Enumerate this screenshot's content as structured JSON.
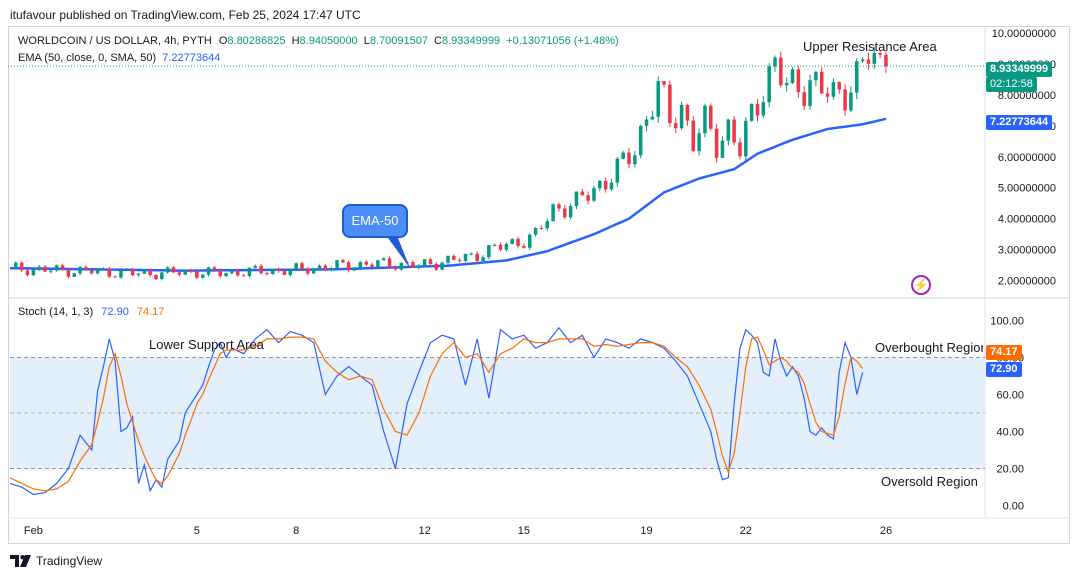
{
  "header": {
    "published_by": "itufavour published on TradingView.com, Feb 25, 2024 17:47 UTC"
  },
  "legend": {
    "symbol": "WORLDCOIN / US DOLLAR, 4h, PYTH",
    "open_label": "O",
    "open": "8.80286825",
    "high_label": "H",
    "high": "8.94050000",
    "low_label": "L",
    "low": "8.70091507",
    "close_label": "C",
    "close": "8.93349999",
    "change": "+0.13071056 (+1.48%)",
    "ema_label": "EMA (50, close, 0, SMA, 50)",
    "ema_value": "7.22773644",
    "stoch_label": "Stoch (14, 1, 3)",
    "stoch_k_value": "72.90",
    "stoch_d_value": "74.17"
  },
  "price_tags": {
    "last_price": "8.93349999",
    "countdown": "02:12:58",
    "ema": "7.22773644",
    "stoch_d": "74.17",
    "stoch_k": "72.90"
  },
  "annotations": {
    "upper_resistance": "Upper Resistance Area",
    "lower_support": "Lower Support Area",
    "overbought": "Overbought Region",
    "oversold": "Oversold Region",
    "ema_callout": "EMA-50"
  },
  "footer": {
    "brand": "TradingView"
  },
  "colors": {
    "up": "#089981",
    "down": "#f23645",
    "ema": "#2962ff",
    "stoch_k": "#2962ff",
    "stoch_d": "#ff6d00",
    "band": "#e3f0fb",
    "last_price_tag": "#089981",
    "ema_tag": "#2962ff"
  },
  "chart_data": [
    {
      "type": "candlestick",
      "title": "WORLDCOIN / US DOLLAR, 4h, PYTH",
      "y_tick_labels": [
        "10.00000000",
        "9.00000000",
        "8.00000000",
        "7.00000000",
        "6.00000000",
        "5.00000000",
        "4.00000000",
        "3.00000000",
        "2.00000000"
      ],
      "y_ticks": [
        10,
        9,
        8,
        7,
        6,
        5,
        4,
        3,
        2
      ],
      "ylim": [
        1.5,
        10.1
      ],
      "x_tick_labels": [
        "Feb",
        "5",
        "8",
        "12",
        "15",
        "19",
        "22",
        "26"
      ],
      "x_tick_index": [
        4,
        32,
        49,
        71,
        88,
        109,
        126,
        150
      ],
      "num_candles": 156,
      "ema_start_index": 0,
      "close_path": [
        [
          0,
          2.4
        ],
        [
          6,
          2.34
        ],
        [
          14,
          2.3
        ],
        [
          22,
          2.22
        ],
        [
          30,
          2.27
        ],
        [
          36,
          2.24
        ],
        [
          42,
          2.3
        ],
        [
          48,
          2.33
        ],
        [
          54,
          2.44
        ],
        [
          60,
          2.52
        ],
        [
          66,
          2.55
        ],
        [
          70,
          2.47
        ],
        [
          74,
          2.62
        ],
        [
          78,
          2.72
        ],
        [
          82,
          2.98
        ],
        [
          86,
          3.2
        ],
        [
          90,
          3.45
        ],
        [
          93,
          4.3
        ],
        [
          97,
          4.5
        ],
        [
          101,
          5.1
        ],
        [
          104,
          5.55
        ],
        [
          107,
          6.25
        ],
        [
          109,
          7.35
        ],
        [
          111,
          8.15
        ],
        [
          113,
          7.2
        ],
        [
          115,
          7.6
        ],
        [
          117,
          6.5
        ],
        [
          119,
          7.05
        ],
        [
          121,
          6.45
        ],
        [
          123,
          6.95
        ],
        [
          125,
          6.2
        ],
        [
          127,
          7.3
        ],
        [
          129,
          8.3
        ],
        [
          131,
          9.0
        ],
        [
          133,
          8.2
        ],
        [
          135,
          8.3
        ],
        [
          137,
          8.45
        ],
        [
          139,
          8.15
        ],
        [
          141,
          7.95
        ],
        [
          143,
          8.2
        ],
        [
          145,
          8.55
        ],
        [
          147,
          9.3
        ],
        [
          149,
          8.95
        ],
        [
          150,
          8.93
        ]
      ],
      "ema_path": [
        [
          0,
          2.4
        ],
        [
          30,
          2.32
        ],
        [
          55,
          2.36
        ],
        [
          75,
          2.48
        ],
        [
          85,
          2.65
        ],
        [
          92,
          2.95
        ],
        [
          100,
          3.5
        ],
        [
          106,
          4.0
        ],
        [
          112,
          4.85
        ],
        [
          118,
          5.3
        ],
        [
          124,
          5.6
        ],
        [
          128,
          6.1
        ],
        [
          134,
          6.55
        ],
        [
          140,
          6.9
        ],
        [
          146,
          7.05
        ],
        [
          150,
          7.23
        ]
      ]
    },
    {
      "type": "line",
      "title": "Stoch (14, 1, 3)",
      "y_tick_labels": [
        "100.00",
        "80.00",
        "60.00",
        "40.00",
        "20.00",
        "0.00"
      ],
      "y_ticks": [
        100,
        80,
        60,
        40,
        20,
        0
      ],
      "ylim": [
        -4,
        104
      ],
      "upper_band": 80,
      "middle_line": 50,
      "lower_band": 20,
      "series": [
        {
          "name": "%K",
          "points": [
            [
              0,
              12
            ],
            [
              2,
              10
            ],
            [
              4,
              6
            ],
            [
              6,
              7
            ],
            [
              8,
              12
            ],
            [
              10,
              20
            ],
            [
              12,
              38
            ],
            [
              14,
              30
            ],
            [
              15,
              62
            ],
            [
              16,
              75
            ],
            [
              17,
              90
            ],
            [
              18,
              78
            ],
            [
              19,
              40
            ],
            [
              20,
              42
            ],
            [
              21,
              48
            ],
            [
              22,
              12
            ],
            [
              23,
              22
            ],
            [
              24,
              8
            ],
            [
              25,
              14
            ],
            [
              26,
              10
            ],
            [
              27,
              25
            ],
            [
              28,
              30
            ],
            [
              29,
              35
            ],
            [
              30,
              50
            ],
            [
              31,
              55
            ],
            [
              32,
              60
            ],
            [
              33,
              65
            ],
            [
              34,
              75
            ],
            [
              35,
              84
            ],
            [
              36,
              88
            ],
            [
              37,
              80
            ],
            [
              38,
              85
            ],
            [
              40,
              82
            ],
            [
              42,
              90
            ],
            [
              44,
              95
            ],
            [
              46,
              88
            ],
            [
              48,
              94
            ],
            [
              50,
              92
            ],
            [
              52,
              88
            ],
            [
              54,
              60
            ],
            [
              56,
              70
            ],
            [
              58,
              75
            ],
            [
              60,
              70
            ],
            [
              62,
              65
            ],
            [
              64,
              40
            ],
            [
              66,
              20
            ],
            [
              68,
              55
            ],
            [
              70,
              72
            ],
            [
              72,
              88
            ],
            [
              74,
              92
            ],
            [
              76,
              90
            ],
            [
              78,
              65
            ],
            [
              80,
              90
            ],
            [
              82,
              58
            ],
            [
              84,
              95
            ],
            [
              86,
              90
            ],
            [
              88,
              92
            ],
            [
              90,
              85
            ],
            [
              92,
              88
            ],
            [
              94,
              96
            ],
            [
              96,
              88
            ],
            [
              98,
              92
            ],
            [
              100,
              80
            ],
            [
              102,
              90
            ],
            [
              104,
              88
            ],
            [
              106,
              85
            ],
            [
              108,
              90
            ],
            [
              110,
              88
            ],
            [
              112,
              85
            ],
            [
              114,
              78
            ],
            [
              116,
              70
            ],
            [
              118,
              55
            ],
            [
              120,
              40
            ],
            [
              121,
              25
            ],
            [
              122,
              14
            ],
            [
              123,
              15
            ],
            [
              124,
              55
            ],
            [
              125,
              85
            ],
            [
              126,
              95
            ],
            [
              127,
              92
            ],
            [
              128,
              88
            ],
            [
              129,
              72
            ],
            [
              130,
              70
            ],
            [
              131,
              90
            ],
            [
              132,
              78
            ],
            [
              133,
              70
            ],
            [
              134,
              75
            ],
            [
              135,
              70
            ],
            [
              136,
              58
            ],
            [
              137,
              40
            ],
            [
              138,
              38
            ],
            [
              139,
              42
            ],
            [
              140,
              38
            ],
            [
              141,
              36
            ],
            [
              142,
              72
            ],
            [
              143,
              88
            ],
            [
              144,
              80
            ],
            [
              145,
              60
            ],
            [
              146,
              72
            ]
          ]
        },
        {
          "name": "%D",
          "points": [
            [
              0,
              15
            ],
            [
              2,
              12
            ],
            [
              4,
              9
            ],
            [
              6,
              8
            ],
            [
              8,
              9
            ],
            [
              10,
              13
            ],
            [
              12,
              24
            ],
            [
              14,
              33
            ],
            [
              15,
              45
            ],
            [
              16,
              58
            ],
            [
              17,
              75
            ],
            [
              18,
              82
            ],
            [
              19,
              70
            ],
            [
              20,
              55
            ],
            [
              21,
              45
            ],
            [
              22,
              35
            ],
            [
              23,
              27
            ],
            [
              24,
              20
            ],
            [
              25,
              14
            ],
            [
              26,
              12
            ],
            [
              27,
              16
            ],
            [
              28,
              22
            ],
            [
              29,
              28
            ],
            [
              30,
              38
            ],
            [
              31,
              46
            ],
            [
              32,
              55
            ],
            [
              33,
              60
            ],
            [
              34,
              68
            ],
            [
              35,
              75
            ],
            [
              36,
              82
            ],
            [
              37,
              84
            ],
            [
              38,
              84
            ],
            [
              40,
              84
            ],
            [
              42,
              86
            ],
            [
              44,
              90
            ],
            [
              46,
              90
            ],
            [
              48,
              91
            ],
            [
              50,
              91
            ],
            [
              52,
              90
            ],
            [
              54,
              78
            ],
            [
              56,
              72
            ],
            [
              58,
              68
            ],
            [
              60,
              70
            ],
            [
              62,
              68
            ],
            [
              64,
              52
            ],
            [
              66,
              40
            ],
            [
              68,
              38
            ],
            [
              70,
              50
            ],
            [
              72,
              70
            ],
            [
              74,
              82
            ],
            [
              76,
              88
            ],
            [
              78,
              80
            ],
            [
              80,
              82
            ],
            [
              82,
              72
            ],
            [
              84,
              82
            ],
            [
              86,
              85
            ],
            [
              88,
              90
            ],
            [
              90,
              88
            ],
            [
              92,
              88
            ],
            [
              94,
              90
            ],
            [
              96,
              90
            ],
            [
              98,
              90
            ],
            [
              100,
              86
            ],
            [
              102,
              87
            ],
            [
              104,
              86
            ],
            [
              106,
              87
            ],
            [
              108,
              88
            ],
            [
              110,
              88
            ],
            [
              112,
              86
            ],
            [
              114,
              80
            ],
            [
              116,
              75
            ],
            [
              118,
              65
            ],
            [
              120,
              52
            ],
            [
              121,
              40
            ],
            [
              122,
              27
            ],
            [
              123,
              18
            ],
            [
              124,
              28
            ],
            [
              125,
              50
            ],
            [
              126,
              75
            ],
            [
              127,
              90
            ],
            [
              128,
              91
            ],
            [
              129,
              84
            ],
            [
              130,
              76
            ],
            [
              131,
              78
            ],
            [
              132,
              80
            ],
            [
              133,
              78
            ],
            [
              134,
              74
            ],
            [
              135,
              72
            ],
            [
              136,
              66
            ],
            [
              137,
              55
            ],
            [
              138,
              45
            ],
            [
              139,
              40
            ],
            [
              140,
              39
            ],
            [
              141,
              38
            ],
            [
              142,
              48
            ],
            [
              143,
              66
            ],
            [
              144,
              80
            ],
            [
              145,
              78
            ],
            [
              146,
              74
            ]
          ]
        }
      ]
    }
  ]
}
